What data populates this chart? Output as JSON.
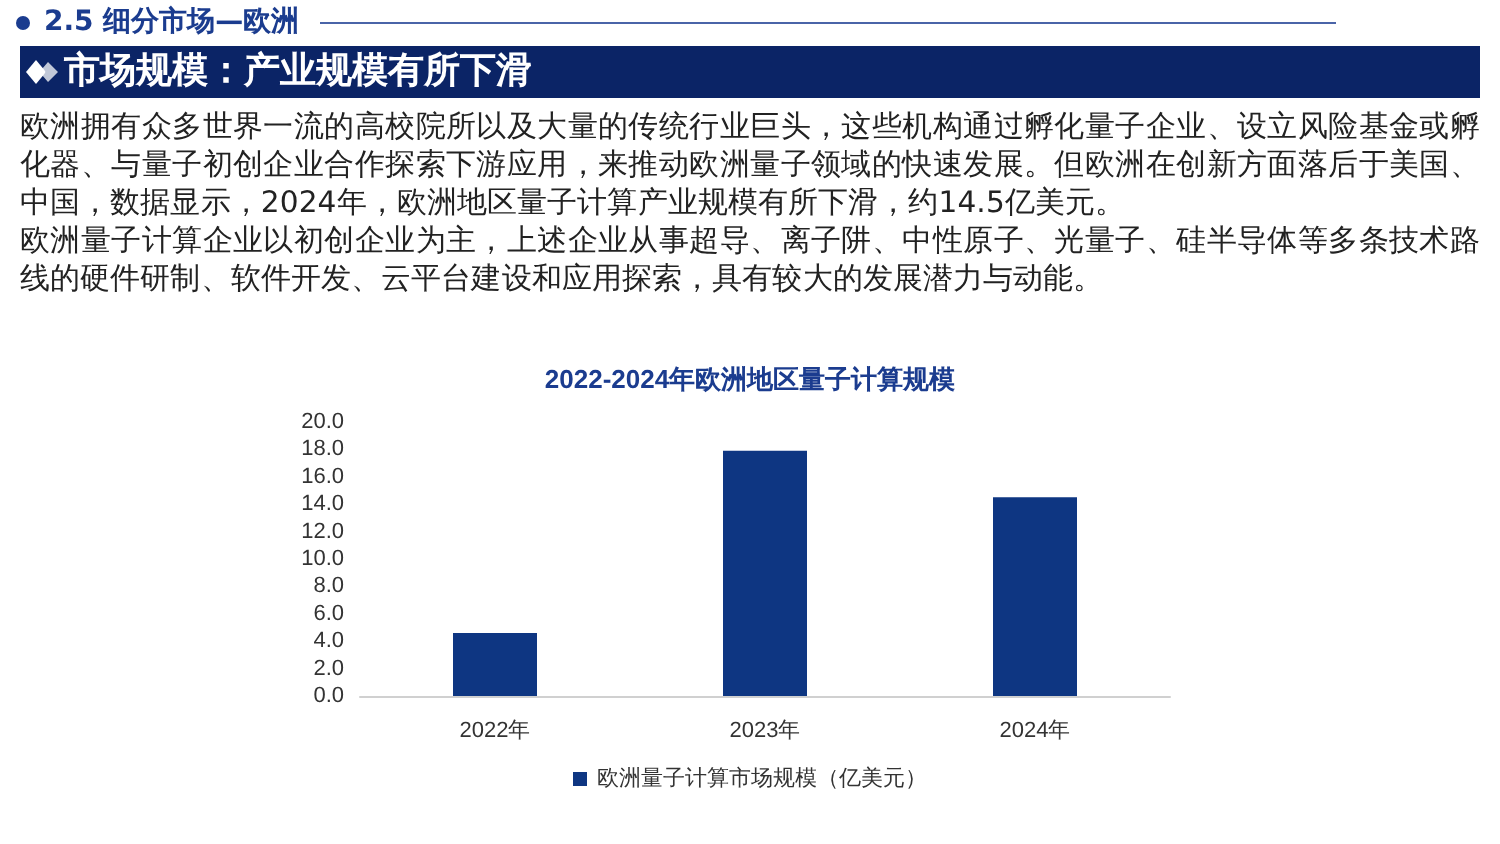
{
  "chart_data": {
    "type": "bar",
    "title": "2022-2024年欧洲地区量子计算规模",
    "categories": [
      "2022年",
      "2023年",
      "2024年"
    ],
    "series": [
      {
        "name": "欧洲量子计算市场规模（亿美元）",
        "color": "#0e3682",
        "values": [
          4.6,
          17.9,
          14.5
        ]
      }
    ],
    "ylim": [
      0,
      20
    ],
    "yticks": [
      {
        "value": 0,
        "label": "0.0"
      },
      {
        "value": 2,
        "label": "2.0"
      },
      {
        "value": 4,
        "label": "4.0"
      },
      {
        "value": 6,
        "label": "6.0"
      },
      {
        "value": 8,
        "label": "8.0"
      },
      {
        "value": 10,
        "label": "10.0"
      },
      {
        "value": 12,
        "label": "12.0"
      },
      {
        "value": 14,
        "label": "14.0"
      },
      {
        "value": 16,
        "label": "16.0"
      },
      {
        "value": 18,
        "label": "18.0"
      },
      {
        "value": 20,
        "label": "20.0"
      }
    ],
    "grid": false,
    "legend": "bottom",
    "annotations": [
      "2.5 细分市场—欧洲",
      "市场规模：产业规模有所下滑",
      "欧洲拥有众多世界一流的高校院所以及大量的传统行业巨头，这些机构通过孵化量子企业、设立风险基金或孵化器、与量子初创企业合作探索下游应用，来推动欧洲量子领域的快速发展。但欧洲在创新方面落后于美国、中国，数据显示，2024年，欧洲地区量子计算产业规模有所下滑，约14.5亿美元。",
      "欧洲量子计算企业以初创企业为主，上述企业从事超导、离子阱、中性原子、光量子、硅半导体等多条技术路线的硬件研制、软件开发、云平台建设和应用探索，具有较大的发展潜力与动能。"
    ]
  }
}
